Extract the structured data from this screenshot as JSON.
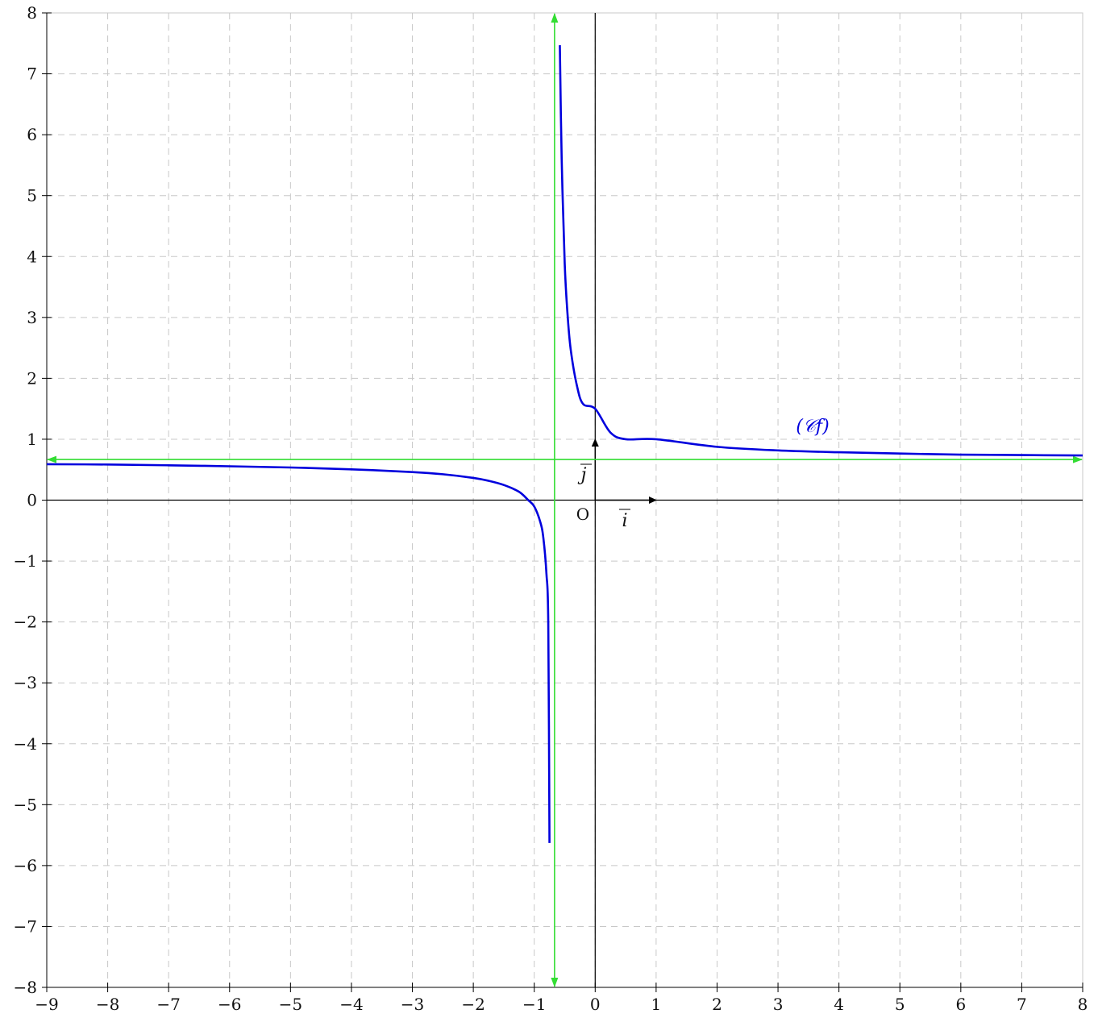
{
  "chart_data": {
    "type": "line",
    "title": "",
    "xlabel": "",
    "ylabel": "",
    "xlim": [
      -9,
      8
    ],
    "ylim": [
      -8,
      8
    ],
    "grid": true,
    "x_tick_labels": [
      "−9",
      "−8",
      "−7",
      "−6",
      "−5",
      "−4",
      "−3",
      "−2",
      "−1",
      "0",
      "1",
      "2",
      "3",
      "4",
      "5",
      "6",
      "7",
      "8"
    ],
    "y_tick_labels": [
      "−8",
      "−7",
      "−6",
      "−5",
      "−4",
      "−3",
      "−2",
      "−1",
      "0",
      "1",
      "2",
      "3",
      "4",
      "5",
      "6",
      "7",
      "8"
    ],
    "origin_label": "O",
    "unit_vectors": {
      "i": {
        "label": "i",
        "dx": 1,
        "dy": 0
      },
      "j": {
        "label": "j",
        "dx": 0,
        "dy": 1
      }
    },
    "asymptotes": {
      "vertical_x": -0.667,
      "horizontal_y": 0.667,
      "color": "#33dd33"
    },
    "series": [
      {
        "name": "(𝒞f)",
        "color": "#0000dd",
        "branches": [
          {
            "x": [
              -9,
              -8,
              -7,
              -6,
              -5,
              -4,
              -3,
              -2.5,
              -2,
              -1.75,
              -1.5,
              -1.25,
              -1.1,
              -1,
              -0.9,
              -0.85,
              -0.8,
              -0.77,
              -0.75
            ],
            "y": [
              0.59,
              0.585,
              0.572,
              0.556,
              0.536,
              0.506,
              0.461,
              0.425,
              0.365,
              0.318,
              0.249,
              0.137,
              0.001,
              -0.105,
              -0.362,
              -0.625,
              -1.207,
              -2.014,
              -5.63
            ]
          },
          {
            "x": [
              -0.58,
              -0.55,
              -0.5,
              -0.45,
              -0.4,
              -0.3,
              -0.2,
              0,
              0.25,
              0.5,
              1,
              2,
              3,
              4,
              5,
              6,
              7,
              8
            ],
            "y": [
              7.47,
              5.61,
              3.88,
              3.0,
              2.46,
              1.88,
              1.58,
              1.5,
              1.11,
              1.0,
              1.0,
              0.875,
              0.816,
              0.786,
              0.765,
              0.747,
              0.74,
              0.733
            ]
          }
        ]
      }
    ]
  }
}
